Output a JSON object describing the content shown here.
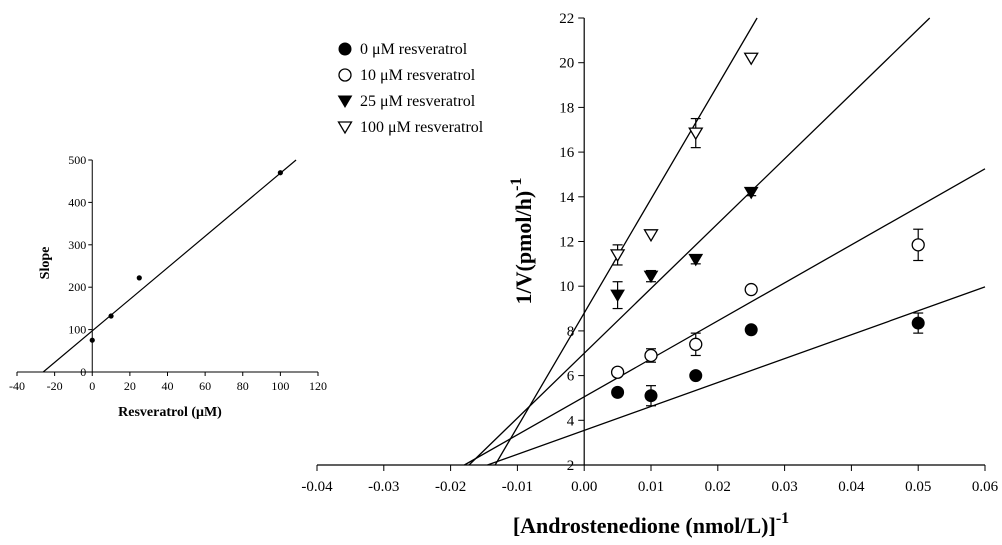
{
  "chart_data": [
    {
      "type": "scatter",
      "title": "",
      "xlabel": "Resveratrol (μM)",
      "ylabel": "Slope",
      "xlim": [
        -40,
        120
      ],
      "ylim": [
        0,
        500
      ],
      "x_ticks": [
        "-40",
        "-20",
        "0",
        "20",
        "40",
        "60",
        "80",
        "100",
        "120"
      ],
      "y_ticks": [
        "0",
        "100",
        "200",
        "300",
        "400",
        "500"
      ],
      "x_tick_values": [
        -40,
        -20,
        0,
        20,
        40,
        60,
        80,
        100,
        120
      ],
      "y_tick_values": [
        0,
        100,
        200,
        300,
        400,
        500
      ],
      "grid": false,
      "series": [
        {
          "x": [
            0,
            10,
            25,
            100
          ],
          "y": [
            75,
            132,
            222,
            470
          ]
        }
      ],
      "fit_line": {
        "slope": 3.72,
        "intercept": 97
      }
    },
    {
      "type": "scatter",
      "title": "",
      "xlabel": "[Androstenedione (nmol/L)]",
      "xlabel_sup": "-1",
      "ylabel": "1/V(pmol/h)",
      "ylabel_sup": "-1",
      "xlim": [
        -0.04,
        0.06
      ],
      "ylim": [
        2,
        22
      ],
      "x_ticks": [
        "-0.04",
        "-0.03",
        "-0.02",
        "-0.01",
        "0.00",
        "0.01",
        "0.02",
        "0.03",
        "0.04",
        "0.05",
        "0.06"
      ],
      "y_ticks": [
        "2",
        "4",
        "6",
        "8",
        "10",
        "12",
        "14",
        "16",
        "18",
        "20",
        "22"
      ],
      "x_tick_values": [
        -0.04,
        -0.03,
        -0.02,
        -0.01,
        0.0,
        0.01,
        0.02,
        0.03,
        0.04,
        0.05,
        0.06
      ],
      "y_tick_values": [
        2,
        4,
        6,
        8,
        10,
        12,
        14,
        16,
        18,
        20,
        22
      ],
      "grid": false,
      "legend_position": "top-left",
      "series": [
        {
          "name": "0 μM resveratrol",
          "marker": "filled-circle",
          "x": [
            0.005,
            0.01,
            0.0167,
            0.025,
            0.05
          ],
          "y": [
            5.25,
            5.1,
            6.0,
            8.05,
            8.35
          ],
          "err": [
            0.0,
            0.45,
            0.0,
            0.0,
            0.45
          ],
          "fit_line": {
            "slope": 107,
            "intercept": 3.55
          }
        },
        {
          "name": "10 μM resveratrol",
          "marker": "open-circle",
          "x": [
            0.005,
            0.01,
            0.0167,
            0.025,
            0.05
          ],
          "y": [
            6.15,
            6.9,
            7.4,
            9.85,
            11.85
          ],
          "err": [
            0.0,
            0.3,
            0.5,
            0.0,
            0.7
          ],
          "fit_line": {
            "slope": 170,
            "intercept": 5.05
          }
        },
        {
          "name": "25 μM resveratrol",
          "marker": "filled-triangle-down",
          "x": [
            0.005,
            0.01,
            0.0167,
            0.025
          ],
          "y": [
            9.6,
            10.45,
            11.2,
            14.2
          ],
          "err": [
            0.6,
            0.25,
            0.2,
            0.15
          ],
          "fit_line": {
            "slope": 290,
            "intercept": 7.0
          }
        },
        {
          "name": "100 μM resveratrol",
          "marker": "open-triangle-down",
          "x": [
            0.005,
            0.01,
            0.0167,
            0.025
          ],
          "y": [
            11.4,
            12.3,
            16.85,
            20.2
          ],
          "err": [
            0.45,
            0.0,
            0.65,
            0.0
          ],
          "fit_line": {
            "slope": 510,
            "intercept": 8.8
          }
        }
      ]
    }
  ]
}
